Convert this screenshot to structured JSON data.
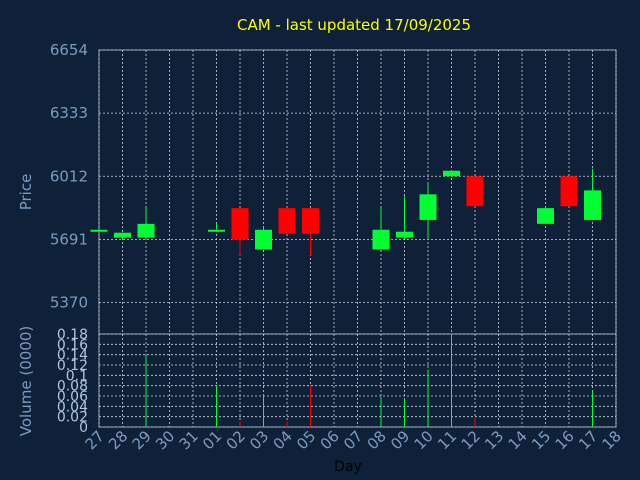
{
  "chart_data": {
    "type": "candlestick",
    "title": "CAM - last updated 17/09/2025",
    "colors": {
      "background": "#0f2138",
      "plot_border": "#8fa5be",
      "grid": "#c8d2dc",
      "up": "#00ff33",
      "down": "#ff0000",
      "title": "#ffff00",
      "axis_text": "#7a9cc0"
    },
    "x": {
      "label": "Day",
      "ticks": [
        "27",
        "28",
        "29",
        "30",
        "31",
        "01",
        "02",
        "03",
        "04",
        "05",
        "06",
        "07",
        "08",
        "09",
        "10",
        "11",
        "12",
        "13",
        "14",
        "15",
        "16",
        "17",
        "18"
      ]
    },
    "price": {
      "label": "Price",
      "ylim": [
        5210,
        6654
      ],
      "ticks": [
        "6654",
        "6333",
        "6012",
        "5691",
        "5370"
      ],
      "candles": [
        {
          "day": "27",
          "open": 5740,
          "high": 5745,
          "low": 5735,
          "close": 5740
        },
        {
          "day": "28",
          "open": 5700,
          "high": 5725,
          "low": 5690,
          "close": 5725
        },
        {
          "day": "29",
          "open": 5700,
          "high": 5850,
          "low": 5690,
          "close": 5770
        },
        {
          "day": "01",
          "open": 5740,
          "high": 5770,
          "low": 5730,
          "close": 5740
        },
        {
          "day": "02",
          "open": 5850,
          "high": 5850,
          "low": 5610,
          "close": 5690
        },
        {
          "day": "03",
          "open": 5640,
          "high": 5750,
          "low": 5640,
          "close": 5740
        },
        {
          "day": "04",
          "open": 5850,
          "high": 5850,
          "low": 5720,
          "close": 5720
        },
        {
          "day": "05",
          "open": 5850,
          "high": 5850,
          "low": 5610,
          "close": 5720
        },
        {
          "day": "08",
          "open": 5640,
          "high": 5850,
          "low": 5640,
          "close": 5740
        },
        {
          "day": "09",
          "open": 5700,
          "high": 5910,
          "low": 5690,
          "close": 5730
        },
        {
          "day": "10",
          "open": 5790,
          "high": 5980,
          "low": 5690,
          "close": 5920
        },
        {
          "day": "11",
          "open": 6012,
          "high": 6040,
          "low": 6012,
          "close": 6040
        },
        {
          "day": "12",
          "open": 6012,
          "high": 6012,
          "low": 5860,
          "close": 5860
        },
        {
          "day": "15",
          "open": 5770,
          "high": 5850,
          "low": 5770,
          "close": 5850
        },
        {
          "day": "16",
          "open": 6012,
          "high": 6012,
          "low": 5860,
          "close": 5860
        },
        {
          "day": "17",
          "open": 5790,
          "high": 6050,
          "low": 5790,
          "close": 5940
        }
      ]
    },
    "volume": {
      "label": "Volume (0000)",
      "ylim": [
        0,
        0.18
      ],
      "ticks": [
        "0.18",
        "0.16",
        "0.14",
        "0.12",
        "0.1",
        "0.08",
        "0.06",
        "0.04",
        "0.02",
        "0"
      ],
      "bars": [
        {
          "day": "29",
          "value": 0.138,
          "direction": "up"
        },
        {
          "day": "01",
          "value": 0.08,
          "direction": "up"
        },
        {
          "day": "02",
          "value": 0.01,
          "direction": "down"
        },
        {
          "day": "03",
          "value": 0.063,
          "direction": "up"
        },
        {
          "day": "04",
          "value": 0.01,
          "direction": "down"
        },
        {
          "day": "05",
          "value": 0.08,
          "direction": "down"
        },
        {
          "day": "08",
          "value": 0.058,
          "direction": "up"
        },
        {
          "day": "09",
          "value": 0.053,
          "direction": "up"
        },
        {
          "day": "10",
          "value": 0.111,
          "direction": "up"
        },
        {
          "day": "11",
          "value": 0.181,
          "direction": "up"
        },
        {
          "day": "12",
          "value": 0.018,
          "direction": "down"
        },
        {
          "day": "17",
          "value": 0.07,
          "direction": "up"
        }
      ]
    }
  }
}
